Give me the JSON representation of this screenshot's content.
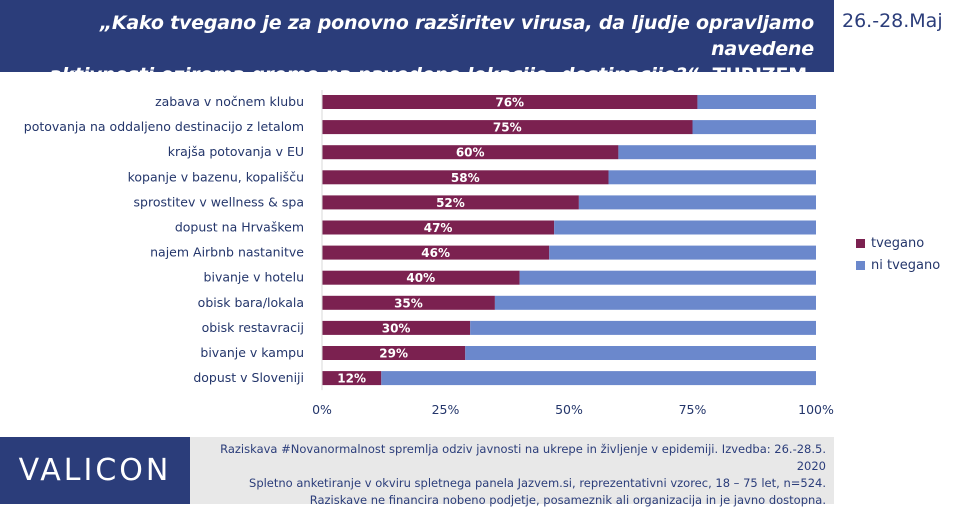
{
  "header": {
    "title_line1": "„Kako tvegano je za ponovno razširitev virusa, da ljudje opravljamo navedene",
    "title_line2_italic": "aktivnosti oziroma gremo na navedene lokacije, destinacije?“",
    "title_line2_rest": "- TURIZEM, LOKALI",
    "date": "26.-28.Maj"
  },
  "chart_data": {
    "type": "bar",
    "orientation": "horizontal",
    "stacked": true,
    "categories": [
      "zabava v nočnem klubu",
      "potovanja na oddaljeno destinacijo z letalom",
      "krajša potovanja v EU",
      "kopanje v bazenu, kopališču",
      "sprostitev v wellness & spa",
      "dopust na Hrvaškem",
      "najem Airbnb nastanitve",
      "bivanje v hotelu",
      "obisk bara/lokala",
      "obisk restavracij",
      "bivanje v kampu",
      "dopust v Sloveniji"
    ],
    "series": [
      {
        "name": "tvegano",
        "values": [
          76,
          75,
          60,
          58,
          52,
          47,
          46,
          40,
          35,
          30,
          29,
          12
        ],
        "color": "#7b2150"
      },
      {
        "name": "ni tvegano",
        "values": [
          24,
          25,
          40,
          42,
          48,
          53,
          54,
          60,
          65,
          70,
          71,
          88
        ],
        "color": "#6b88cc"
      }
    ],
    "value_labels": [
      "76%",
      "75%",
      "60%",
      "58%",
      "52%",
      "47%",
      "46%",
      "40%",
      "35%",
      "30%",
      "29%",
      "12%"
    ],
    "xlim": [
      0,
      100
    ],
    "xticks": [
      "0%",
      "25%",
      "50%",
      "75%",
      "100%"
    ],
    "legend_position": "right",
    "grid": false
  },
  "brand": {
    "logo": "VALICON"
  },
  "footnote": {
    "line1": "Raziskava #Novanormalnost spremlja odziv javnosti na ukrepe in življenje v epidemiji. Izvedba: 26.-28.5. 2020",
    "line2": "Spletno anketiranje v okviru spletnega panela Jazvem.si, reprezentativni vzorec, 18 – 75 let, n=524.",
    "line3": "Raziskave ne financira nobeno podjetje, posameznik ali organizacija in je javno dostopna."
  }
}
